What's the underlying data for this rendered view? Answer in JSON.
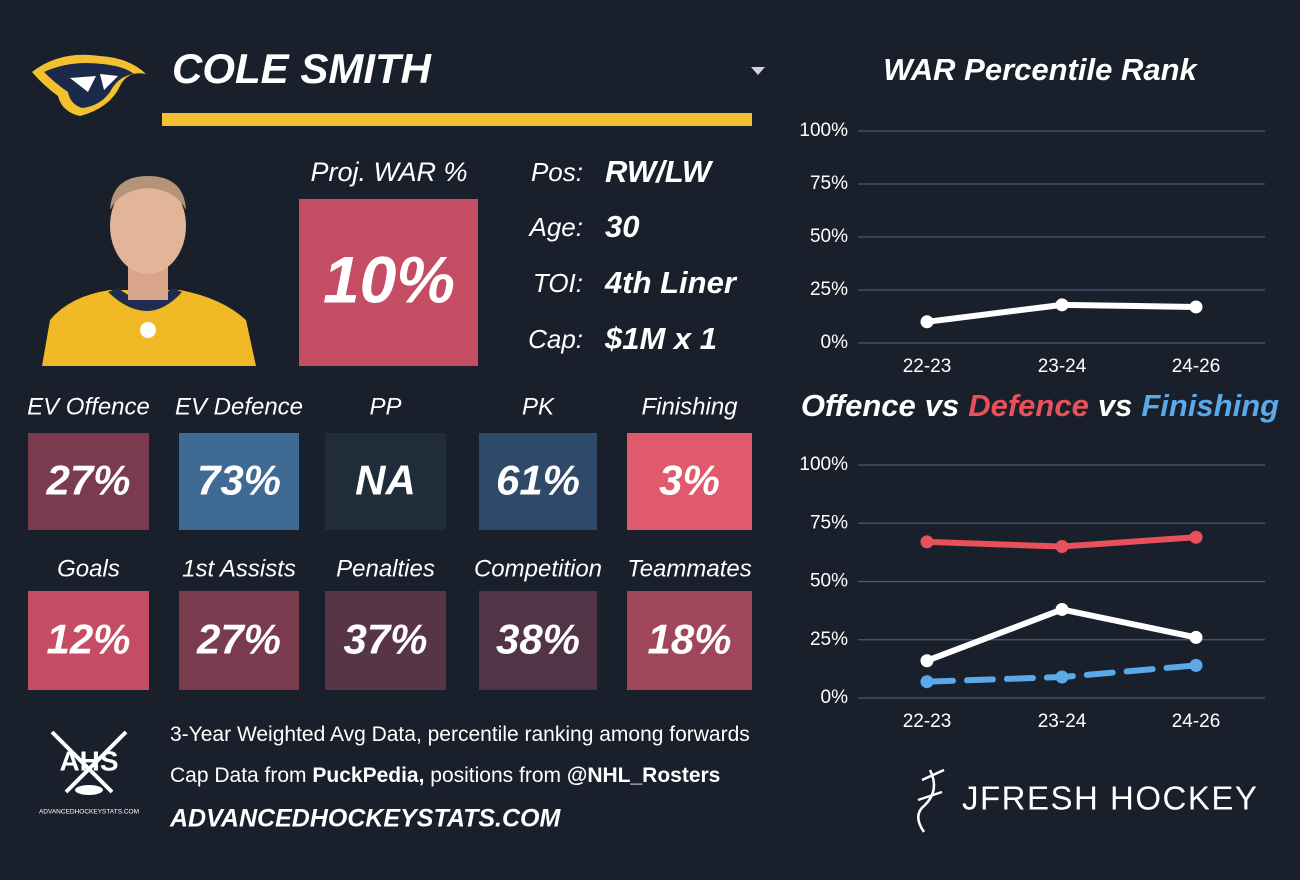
{
  "header": {
    "player_name": "COLE SMITH"
  },
  "projection": {
    "label": "Proj. WAR %",
    "value": "10%",
    "color": "#c44d63"
  },
  "info": [
    {
      "label": "Pos:",
      "value": "RW/LW"
    },
    {
      "label": "Age:",
      "value": "30"
    },
    {
      "label": "TOI:",
      "value": "4th Liner"
    },
    {
      "label": "Cap:",
      "value": "$1M x 1"
    }
  ],
  "tiles": [
    [
      {
        "label": "EV Offence",
        "value": "27%",
        "color": "#7b3b4e"
      },
      {
        "label": "EV Defence",
        "value": "73%",
        "color": "#3e6a93"
      },
      {
        "label": "PP",
        "value": "NA",
        "color": "#212c3a"
      },
      {
        "label": "PK",
        "value": "61%",
        "color": "#2f4a69"
      },
      {
        "label": "Finishing",
        "value": "3%",
        "color": "#e05a6b"
      }
    ],
    [
      {
        "label": "Goals",
        "value": "12%",
        "color": "#c44d63"
      },
      {
        "label": "1st Assists",
        "value": "27%",
        "color": "#7b3b4e"
      },
      {
        "label": "Penalties",
        "value": "37%",
        "color": "#583447"
      },
      {
        "label": "Competition",
        "value": "38%",
        "color": "#523446"
      },
      {
        "label": "Teammates",
        "value": "18%",
        "color": "#a0465b"
      }
    ]
  ],
  "footer": {
    "lines": [
      [
        {
          "text": "3-Year Weighted Avg Data, percentile ranking among forwards",
          "bold": false
        }
      ],
      [
        {
          "text": "Cap Data from ",
          "bold": false
        },
        {
          "text": "PuckPedia,",
          "bold": true
        },
        {
          "text": " positions from ",
          "bold": false
        },
        {
          "text": "@NHL_Rosters",
          "bold": true
        }
      ]
    ],
    "website": "ADVANCEDHOCKEYSTATS.COM"
  },
  "logos": {
    "ahs": "AHS",
    "ahs_site": "ADVANCEDHOCKEYSTATS.COM",
    "brand": "JFRESH HOCKEY"
  },
  "chart_data": [
    {
      "type": "line",
      "title": "WAR Percentile Rank",
      "categories": [
        "22-23",
        "23-24",
        "24-26"
      ],
      "values": [
        10,
        18,
        17
      ],
      "color": "#ffffff",
      "ylim": [
        0,
        100
      ],
      "yticks": [
        {
          "value": 0,
          "label": "0%"
        },
        {
          "value": 25,
          "label": "25%"
        },
        {
          "value": 50,
          "label": "50%"
        },
        {
          "value": 75,
          "label": "75%"
        },
        {
          "value": 100,
          "label": "100%"
        }
      ],
      "grid": true
    },
    {
      "type": "line",
      "title_separator": "vs",
      "categories": [
        "22-23",
        "23-24",
        "24-26"
      ],
      "series": [
        {
          "name": "Offence",
          "color": "#ffffff",
          "values": [
            16,
            38,
            26
          ]
        },
        {
          "name": "Defence",
          "color": "#e8505b",
          "values": [
            67,
            65,
            69
          ]
        },
        {
          "name": "Finishing",
          "color": "#5aaaea",
          "values": [
            7,
            9,
            14
          ],
          "dashed": true
        }
      ],
      "ylim": [
        0,
        100
      ],
      "yticks": [
        {
          "value": 0,
          "label": "0%"
        },
        {
          "value": 25,
          "label": "25%"
        },
        {
          "value": 50,
          "label": "50%"
        },
        {
          "value": 75,
          "label": "75%"
        },
        {
          "value": 100,
          "label": "100%"
        }
      ],
      "grid": true
    }
  ]
}
